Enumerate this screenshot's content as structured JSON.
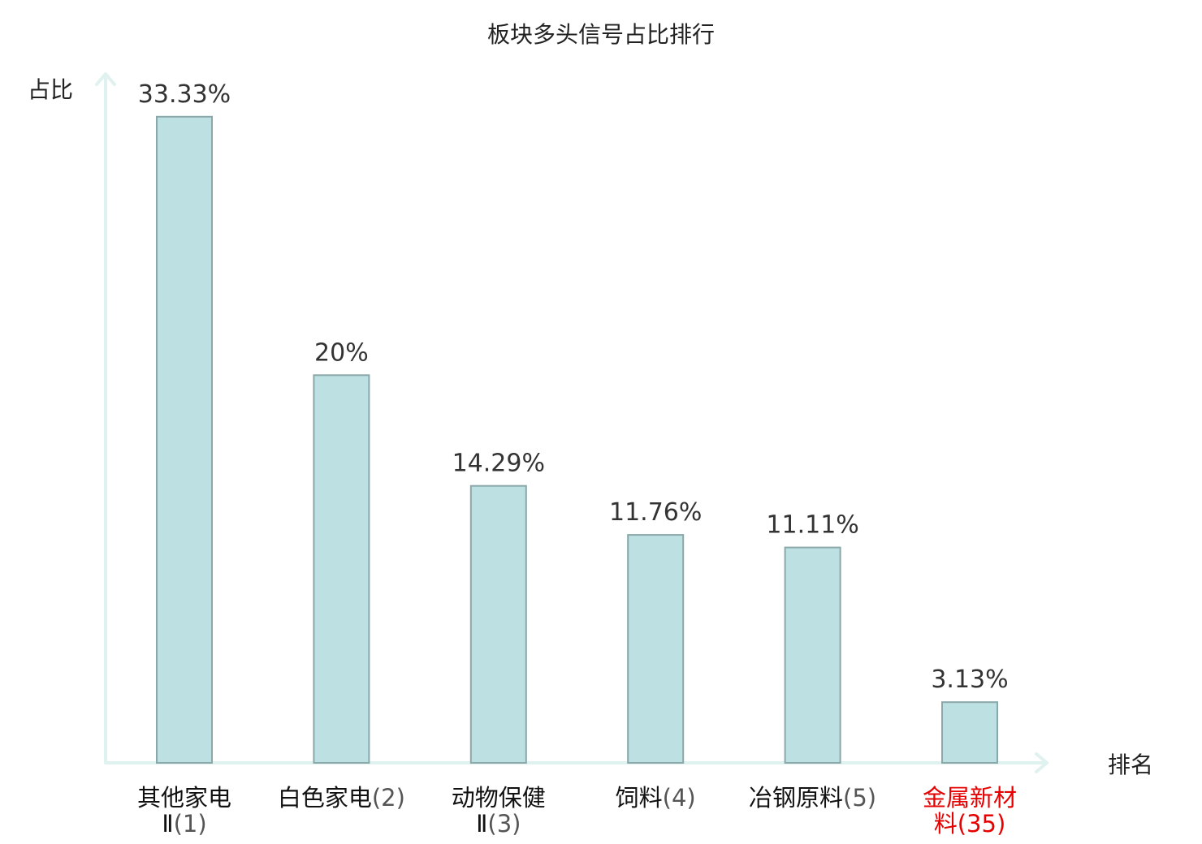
{
  "chart_data": {
    "type": "bar",
    "title": "板块多头信号占比排行",
    "ylabel": "占比",
    "xlabel": "排名",
    "ylim": [
      0,
      35.5
    ],
    "grid": false,
    "legend": "none",
    "categories": [
      {
        "name_lines": [
          "其他家电",
          "Ⅱ"
        ],
        "rank": "(1)",
        "value": 33.33,
        "label": "33.33%",
        "highlight": false
      },
      {
        "name_lines": [
          "白色家电"
        ],
        "rank": "(2)",
        "value": 20,
        "label": "20%",
        "highlight": false
      },
      {
        "name_lines": [
          "动物保健",
          "Ⅱ"
        ],
        "rank": "(3)",
        "value": 14.29,
        "label": "14.29%",
        "highlight": false
      },
      {
        "name_lines": [
          "饲料"
        ],
        "rank": "(4)",
        "value": 11.76,
        "label": "11.76%",
        "highlight": false
      },
      {
        "name_lines": [
          "冶钢原料"
        ],
        "rank": "(5)",
        "value": 11.11,
        "label": "11.11%",
        "highlight": false
      },
      {
        "name_lines": [
          "金属新材",
          "料"
        ],
        "rank": "(35)",
        "value": 3.13,
        "label": "3.13%",
        "highlight": true
      }
    ]
  },
  "colors": {
    "bar_fill": "#bde0e3",
    "bar_stroke": "#8aa7a9",
    "axis": "#e0f2ef",
    "highlight": "#e60000"
  }
}
